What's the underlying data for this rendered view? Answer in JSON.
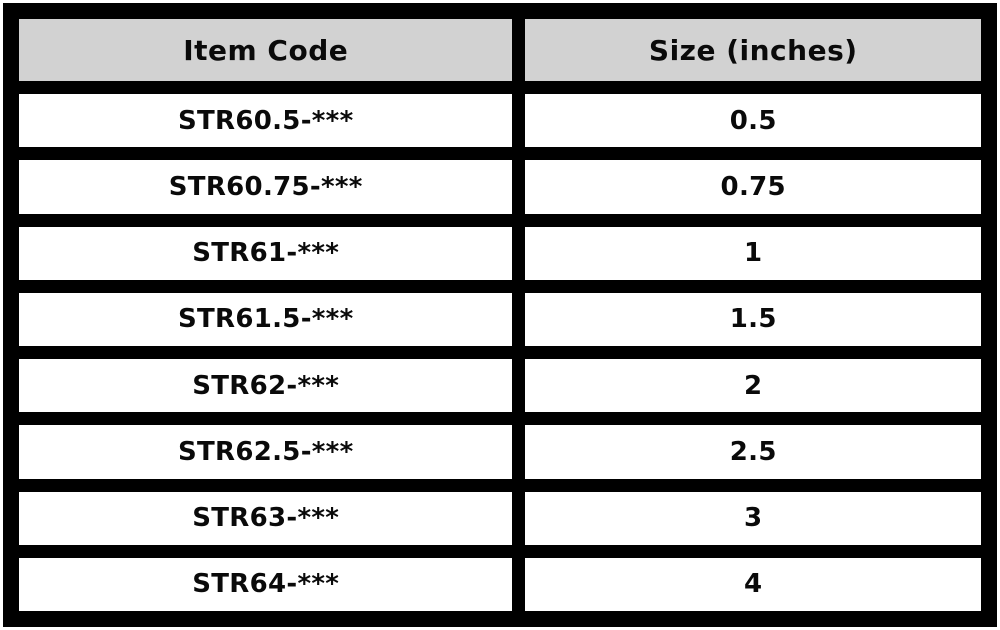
{
  "table": {
    "columns": [
      {
        "label": "Item Code"
      },
      {
        "label": "Size (inches)"
      }
    ],
    "rows": [
      {
        "item_code": "STR60.5-***",
        "size": "0.5"
      },
      {
        "item_code": "STR60.75-***",
        "size": "0.75"
      },
      {
        "item_code": "STR61-***",
        "size": "1"
      },
      {
        "item_code": "STR61.5-***",
        "size": "1.5"
      },
      {
        "item_code": "STR62-***",
        "size": "2"
      },
      {
        "item_code": "STR62.5-***",
        "size": "2.5"
      },
      {
        "item_code": "STR63-***",
        "size": "3"
      },
      {
        "item_code": "STR64-***",
        "size": "4"
      }
    ]
  },
  "colors": {
    "grid": "#000000",
    "header_bg": "#d2d2d2",
    "cell_bg": "#ffffff",
    "text": "#0a0a0a",
    "page_margin": "#ffffff"
  }
}
